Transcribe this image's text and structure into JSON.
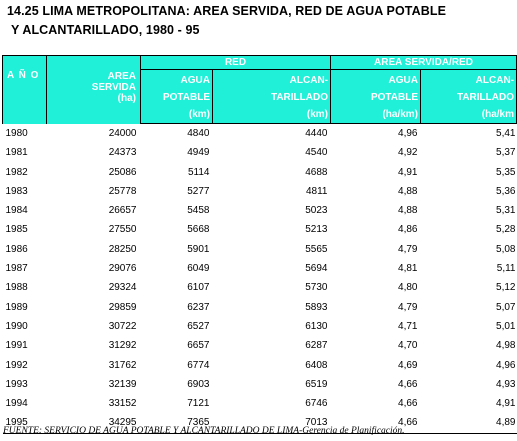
{
  "title": {
    "line1": "14.25 LIMA METROPOLITANA: AREA SERVIDA, RED DE AGUA POTABLE",
    "line2": "Y ALCANTARILLADO, 1980 - 95"
  },
  "header": {
    "group_red": "RED",
    "group_area_red": "AREA SERVIDA/RED",
    "ano": "A Ñ O",
    "area": [
      "AREA",
      "SERVIDA",
      "(ha)"
    ],
    "agua": [
      "AGUA",
      "POTABLE",
      "(km)"
    ],
    "alcantarillado": [
      "ALCAN-",
      "TARILLADO",
      "(km)"
    ],
    "agua_ratio": [
      "AGUA",
      "POTABLE",
      "(ha/km)"
    ],
    "alcantarillado_ratio": [
      "ALCAN-",
      "TARILLADO",
      "(ha/km"
    ]
  },
  "rows": [
    {
      "year": "1980",
      "area": "24000",
      "agua": "4840",
      "alc": "4440",
      "agua_r": "4,96",
      "alc_r": "5,41"
    },
    {
      "year": "1981",
      "area": "24373",
      "agua": "4949",
      "alc": "4540",
      "agua_r": "4,92",
      "alc_r": "5,37"
    },
    {
      "year": "1982",
      "area": "25086",
      "agua": "5114",
      "alc": "4688",
      "agua_r": "4,91",
      "alc_r": "5,35"
    },
    {
      "year": "1983",
      "area": "25778",
      "agua": "5277",
      "alc": "4811",
      "agua_r": "4,88",
      "alc_r": "5,36"
    },
    {
      "year": "1984",
      "area": "26657",
      "agua": "5458",
      "alc": "5023",
      "agua_r": "4,88",
      "alc_r": "5,31"
    },
    {
      "year": "1985",
      "area": "27550",
      "agua": "5668",
      "alc": "5213",
      "agua_r": "4,86",
      "alc_r": "5,28"
    },
    {
      "year": "1986",
      "area": "28250",
      "agua": "5901",
      "alc": "5565",
      "agua_r": "4,79",
      "alc_r": "5,08"
    },
    {
      "year": "1987",
      "area": "29076",
      "agua": "6049",
      "alc": "5694",
      "agua_r": "4,81",
      "alc_r": "5,11"
    },
    {
      "year": "1988",
      "area": "29324",
      "agua": "6107",
      "alc": "5730",
      "agua_r": "4,80",
      "alc_r": "5,12"
    },
    {
      "year": "1989",
      "area": "29859",
      "agua": "6237",
      "alc": "5893",
      "agua_r": "4,79",
      "alc_r": "5,07"
    },
    {
      "year": "1990",
      "area": "30722",
      "agua": "6527",
      "alc": "6130",
      "agua_r": "4,71",
      "alc_r": "5,01"
    },
    {
      "year": "1991",
      "area": "31292",
      "agua": "6657",
      "alc": "6287",
      "agua_r": "4,70",
      "alc_r": "4,98"
    },
    {
      "year": "1992",
      "area": "31762",
      "agua": "6774",
      "alc": "6408",
      "agua_r": "4,69",
      "alc_r": "4,96"
    },
    {
      "year": "1993",
      "area": "32139",
      "agua": "6903",
      "alc": "6519",
      "agua_r": "4,66",
      "alc_r": "4,93"
    },
    {
      "year": "1994",
      "area": "33152",
      "agua": "7121",
      "alc": "6746",
      "agua_r": "4,66",
      "alc_r": "4,91"
    },
    {
      "year": "1995",
      "area": "34295",
      "agua": "7365",
      "alc": "7013",
      "agua_r": "4,66",
      "alc_r": "4,89"
    }
  ],
  "source": "FUENTE: SERVICIO DE AGUA POTABLE Y ALCANTARILLADO DE LIMA-Gerencia de Planificación.",
  "colors": {
    "header_bg": "#20f0d8",
    "header_text": "#ffffff",
    "border": "#000000"
  }
}
